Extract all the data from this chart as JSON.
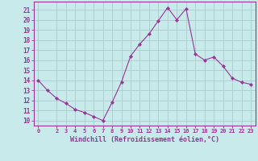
{
  "x": [
    0,
    1,
    2,
    3,
    4,
    5,
    6,
    7,
    8,
    9,
    10,
    11,
    12,
    13,
    14,
    15,
    16,
    17,
    18,
    19,
    20,
    21,
    22,
    23
  ],
  "y": [
    14.0,
    13.0,
    12.2,
    11.7,
    11.1,
    10.8,
    10.4,
    10.0,
    11.8,
    13.8,
    16.4,
    17.6,
    18.6,
    19.9,
    21.2,
    20.0,
    21.1,
    16.6,
    16.0,
    16.3,
    15.4,
    14.2,
    13.8,
    13.6
  ],
  "line_color": "#993399",
  "marker": "D",
  "marker_size": 2.2,
  "bg_color": "#c8eaea",
  "grid_color": "#aacccc",
  "xlabel": "Windchill (Refroidissement éolien,°C)",
  "ylabel_ticks": [
    10,
    11,
    12,
    13,
    14,
    15,
    16,
    17,
    18,
    19,
    20,
    21
  ],
  "xlim": [
    -0.5,
    23.5
  ],
  "ylim": [
    9.5,
    21.8
  ],
  "xticks": [
    0,
    2,
    3,
    4,
    5,
    6,
    7,
    8,
    9,
    10,
    11,
    12,
    13,
    14,
    15,
    16,
    17,
    18,
    19,
    20,
    21,
    22,
    23
  ],
  "axis_color": "#993399",
  "font_color": "#993399"
}
